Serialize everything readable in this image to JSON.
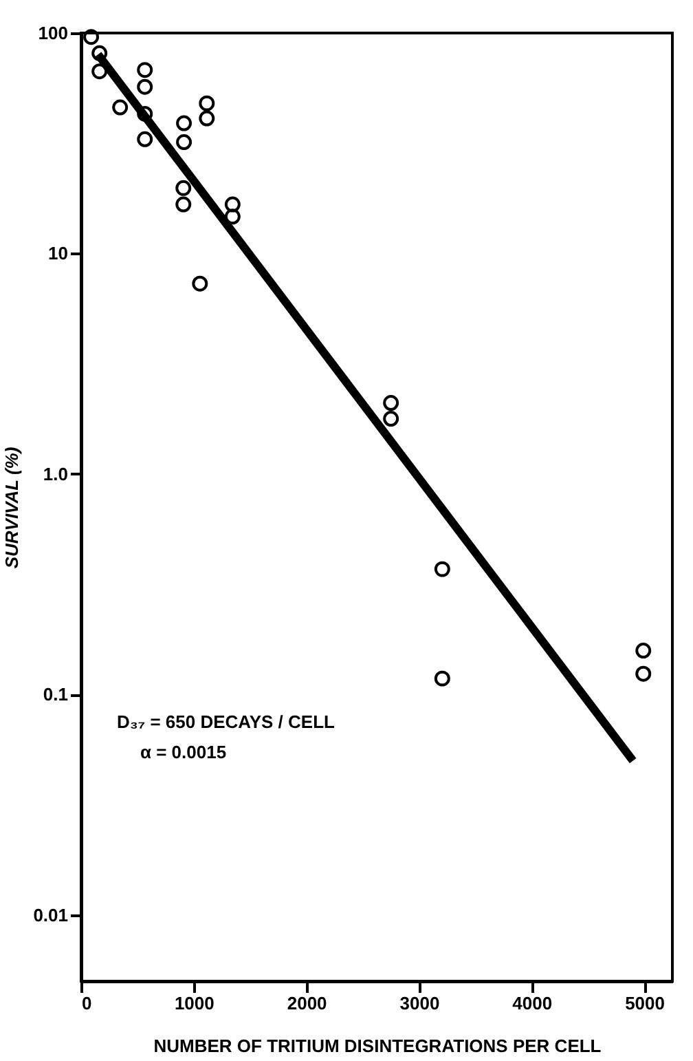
{
  "chart_data": {
    "type": "scatter",
    "xlabel": "NUMBER OF TRITIUM DISINTEGRATIONS PER CELL",
    "ylabel": "SURVIVAL (%)",
    "log": "y",
    "grid": false,
    "xlim": [
      0,
      5250
    ],
    "xticks": [
      0,
      1000,
      2000,
      3000,
      4000,
      5000
    ],
    "ylim": [
      0.005,
      100
    ],
    "yticks": [
      0.01,
      0.1,
      {
        "value": 1,
        "label": "1.0"
      },
      10,
      100
    ],
    "annotations": [
      "D₃₇ = 650 DECAYS / CELL",
      "α = 0.0015"
    ],
    "series": [
      {
        "marker": "circle",
        "color": "#000000",
        "x": [
          89,
          163,
          163,
          346,
          566,
          566,
          566,
          566,
          913,
          913,
          1116,
          1116,
          908,
          908,
          1345,
          1345,
          1055,
          2751,
          2751,
          3207,
          3207,
          4992,
          4992
        ],
        "values": [
          96,
          81,
          67,
          46,
          68,
          57,
          43,
          33,
          39,
          32,
          48,
          41,
          19.8,
          16.7,
          16.7,
          14.7,
          7.3,
          2.1,
          1.78,
          0.37,
          0.118,
          0.158,
          0.124
        ]
      },
      {
        "type": "line",
        "line_style": "solid",
        "color": "#000000",
        "x": [
          150,
          4900
        ],
        "values": [
          80,
          0.05
        ]
      }
    ]
  }
}
